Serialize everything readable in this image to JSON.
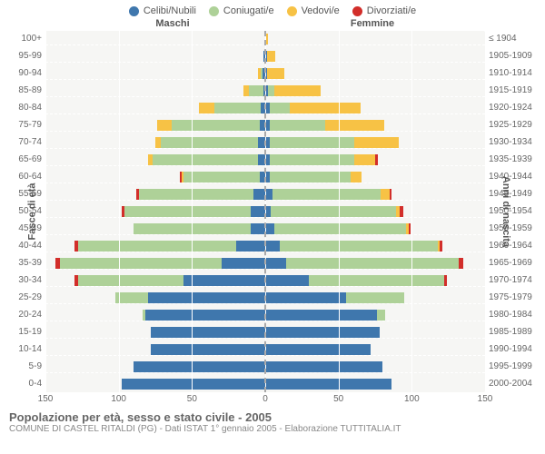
{
  "colors": {
    "celibi": "#3f77ad",
    "coniugati": "#aed198",
    "vedovi": "#f7c245",
    "divorziati": "#d22e2a",
    "plot_bg": "#f6f6f4",
    "grid": "#ffffff",
    "centerline": "#aaaaaa",
    "text": "#666666"
  },
  "legend": {
    "items": [
      {
        "label": "Celibi/Nubili",
        "key": "celibi"
      },
      {
        "label": "Coniugati/e",
        "key": "coniugati"
      },
      {
        "label": "Vedovi/e",
        "key": "vedovi"
      },
      {
        "label": "Divorziati/e",
        "key": "divorziati"
      }
    ]
  },
  "gender": {
    "male": "Maschi",
    "female": "Femmine"
  },
  "y": {
    "left_title": "Fasce di età",
    "right_title": "Anni di nascita",
    "labels_age": [
      "100+",
      "95-99",
      "90-94",
      "85-89",
      "80-84",
      "75-79",
      "70-74",
      "65-69",
      "60-64",
      "55-59",
      "50-54",
      "45-49",
      "40-44",
      "35-39",
      "30-34",
      "25-29",
      "20-24",
      "15-19",
      "10-14",
      "5-9",
      "0-4"
    ],
    "labels_birth": [
      "≤ 1904",
      "1905-1909",
      "1910-1914",
      "1915-1919",
      "1920-1924",
      "1925-1929",
      "1930-1934",
      "1935-1939",
      "1940-1944",
      "1945-1949",
      "1950-1954",
      "1955-1959",
      "1960-1964",
      "1965-1969",
      "1970-1974",
      "1975-1979",
      "1980-1984",
      "1985-1989",
      "1990-1994",
      "1995-1999",
      "2000-2004"
    ]
  },
  "x": {
    "max_per_side": 150,
    "ticks": [
      150,
      100,
      50,
      0,
      50,
      100,
      150
    ]
  },
  "rows": [
    {
      "m": {
        "c": 0,
        "m": 0,
        "w": 0,
        "d": 0
      },
      "f": {
        "c": 0,
        "m": 0,
        "w": 2,
        "d": 0
      }
    },
    {
      "m": {
        "c": 1,
        "m": 0,
        "w": 0,
        "d": 0
      },
      "f": {
        "c": 1,
        "m": 0,
        "w": 6,
        "d": 0
      }
    },
    {
      "m": {
        "c": 2,
        "m": 1,
        "w": 2,
        "d": 0
      },
      "f": {
        "c": 1,
        "m": 0,
        "w": 12,
        "d": 0
      }
    },
    {
      "m": {
        "c": 1,
        "m": 10,
        "w": 4,
        "d": 0
      },
      "f": {
        "c": 2,
        "m": 4,
        "w": 32,
        "d": 0
      }
    },
    {
      "m": {
        "c": 3,
        "m": 32,
        "w": 10,
        "d": 0
      },
      "f": {
        "c": 3,
        "m": 14,
        "w": 48,
        "d": 0
      }
    },
    {
      "m": {
        "c": 4,
        "m": 60,
        "w": 10,
        "d": 0
      },
      "f": {
        "c": 3,
        "m": 38,
        "w": 40,
        "d": 0
      }
    },
    {
      "m": {
        "c": 5,
        "m": 66,
        "w": 4,
        "d": 0
      },
      "f": {
        "c": 3,
        "m": 58,
        "w": 30,
        "d": 0
      }
    },
    {
      "m": {
        "c": 5,
        "m": 72,
        "w": 3,
        "d": 0
      },
      "f": {
        "c": 3,
        "m": 58,
        "w": 14,
        "d": 2
      }
    },
    {
      "m": {
        "c": 4,
        "m": 52,
        "w": 1,
        "d": 1
      },
      "f": {
        "c": 3,
        "m": 55,
        "w": 8,
        "d": 0
      }
    },
    {
      "m": {
        "c": 8,
        "m": 78,
        "w": 0,
        "d": 2
      },
      "f": {
        "c": 5,
        "m": 74,
        "w": 6,
        "d": 1
      }
    },
    {
      "m": {
        "c": 10,
        "m": 86,
        "w": 0,
        "d": 2
      },
      "f": {
        "c": 4,
        "m": 85,
        "w": 3,
        "d": 2
      }
    },
    {
      "m": {
        "c": 10,
        "m": 80,
        "w": 0,
        "d": 0
      },
      "f": {
        "c": 6,
        "m": 90,
        "w": 2,
        "d": 1
      }
    },
    {
      "m": {
        "c": 20,
        "m": 108,
        "w": 0,
        "d": 2
      },
      "f": {
        "c": 10,
        "m": 108,
        "w": 1,
        "d": 2
      }
    },
    {
      "m": {
        "c": 30,
        "m": 110,
        "w": 0,
        "d": 3
      },
      "f": {
        "c": 14,
        "m": 118,
        "w": 0,
        "d": 3
      }
    },
    {
      "m": {
        "c": 56,
        "m": 72,
        "w": 0,
        "d": 2
      },
      "f": {
        "c": 30,
        "m": 92,
        "w": 0,
        "d": 2
      }
    },
    {
      "m": {
        "c": 80,
        "m": 22,
        "w": 0,
        "d": 0
      },
      "f": {
        "c": 55,
        "m": 40,
        "w": 0,
        "d": 0
      }
    },
    {
      "m": {
        "c": 82,
        "m": 2,
        "w": 0,
        "d": 0
      },
      "f": {
        "c": 76,
        "m": 6,
        "w": 0,
        "d": 0
      }
    },
    {
      "m": {
        "c": 78,
        "m": 0,
        "w": 0,
        "d": 0
      },
      "f": {
        "c": 78,
        "m": 0,
        "w": 0,
        "d": 0
      }
    },
    {
      "m": {
        "c": 78,
        "m": 0,
        "w": 0,
        "d": 0
      },
      "f": {
        "c": 72,
        "m": 0,
        "w": 0,
        "d": 0
      }
    },
    {
      "m": {
        "c": 90,
        "m": 0,
        "w": 0,
        "d": 0
      },
      "f": {
        "c": 80,
        "m": 0,
        "w": 0,
        "d": 0
      }
    },
    {
      "m": {
        "c": 98,
        "m": 0,
        "w": 0,
        "d": 0
      },
      "f": {
        "c": 86,
        "m": 0,
        "w": 0,
        "d": 0
      }
    }
  ],
  "footer": {
    "title": "Popolazione per età, sesso e stato civile - 2005",
    "sub": "COMUNE DI CASTEL RITALDI (PG) - Dati ISTAT 1° gennaio 2005 - Elaborazione TUTTITALIA.IT"
  }
}
